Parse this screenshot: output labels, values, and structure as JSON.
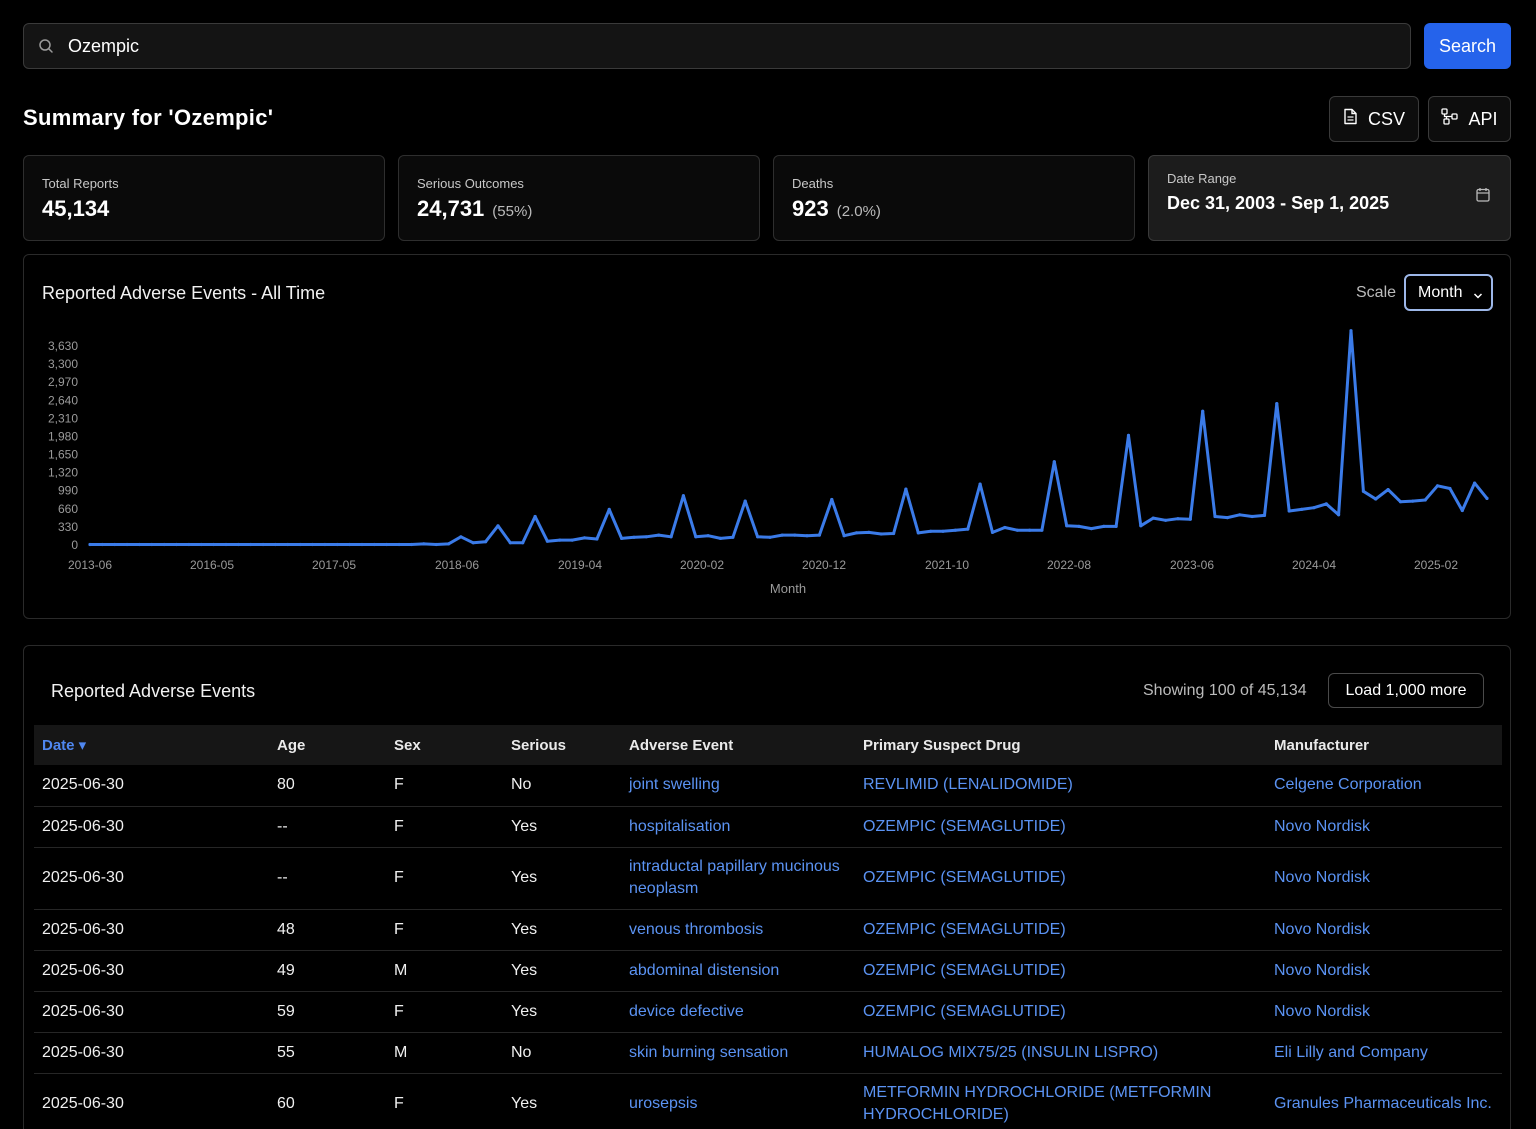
{
  "search": {
    "value": "Ozempic",
    "button_label": "Search"
  },
  "summary": {
    "title": "Summary for 'Ozempic'",
    "csv_label": "CSV",
    "api_label": "API"
  },
  "stats": {
    "total": {
      "label": "Total Reports",
      "value": "45,134"
    },
    "serious": {
      "label": "Serious Outcomes",
      "value": "24,731",
      "pct": "(55%)"
    },
    "deaths": {
      "label": "Deaths",
      "value": "923",
      "pct": "(2.0%)"
    },
    "date_range": {
      "label": "Date Range",
      "value": "Dec 31, 2003 - Sep 1, 2025"
    }
  },
  "chart": {
    "title": "Reported Adverse Events - All Time",
    "scale_label": "Scale",
    "scale_value": "Month"
  },
  "chart_data": {
    "type": "line",
    "title": "Reported Adverse Events - All Time",
    "xlabel": "Month",
    "ylabel": "",
    "ylim": [
      0,
      3630
    ],
    "yticks": [
      "0",
      "330",
      "660",
      "990",
      "1,320",
      "1,650",
      "1,980",
      "2,310",
      "2,640",
      "2,970",
      "3,300",
      "3,630"
    ],
    "xticks": [
      "2013-06",
      "2016-05",
      "2017-05",
      "2018-06",
      "2019-04",
      "2020-02",
      "2020-12",
      "2021-10",
      "2022-08",
      "2023-06",
      "2024-04",
      "2025-02"
    ],
    "grid": false,
    "color": "#3b7be8",
    "values": [
      10,
      10,
      10,
      10,
      10,
      10,
      10,
      10,
      10,
      10,
      10,
      10,
      10,
      10,
      10,
      10,
      10,
      10,
      10,
      10,
      10,
      10,
      10,
      10,
      10,
      10,
      10,
      20,
      10,
      20,
      150,
      40,
      60,
      350,
      40,
      40,
      520,
      70,
      90,
      90,
      130,
      110,
      650,
      120,
      140,
      150,
      180,
      150,
      900,
      150,
      170,
      120,
      140,
      800,
      150,
      140,
      180,
      180,
      170,
      180,
      830,
      170,
      220,
      230,
      200,
      210,
      1020,
      220,
      250,
      250,
      270,
      290,
      1110,
      230,
      320,
      270,
      270,
      270,
      1520,
      350,
      340,
      300,
      340,
      340,
      2000,
      350,
      490,
      450,
      480,
      470,
      2440,
      520,
      500,
      550,
      520,
      540,
      2580,
      620,
      650,
      680,
      750,
      550,
      3910,
      980,
      840,
      1010,
      790,
      800,
      820,
      1080,
      1030,
      630,
      1130,
      850
    ]
  },
  "table": {
    "title": "Reported Adverse Events",
    "showing": "Showing 100 of 45,134",
    "load_more": "Load 1,000 more",
    "columns": [
      "Date ▾",
      "Age",
      "Sex",
      "Serious",
      "Adverse Event",
      "Primary Suspect Drug",
      "Manufacturer"
    ],
    "rows": [
      {
        "date": "2025-06-30",
        "age": "80",
        "sex": "F",
        "serious": "No",
        "event": "joint swelling",
        "drug": "REVLIMID (LENALIDOMIDE)",
        "manufacturer": "Celgene Corporation"
      },
      {
        "date": "2025-06-30",
        "age": "--",
        "sex": "F",
        "serious": "Yes",
        "event": "hospitalisation",
        "drug": "OZEMPIC (SEMAGLUTIDE)",
        "manufacturer": "Novo Nordisk"
      },
      {
        "date": "2025-06-30",
        "age": "--",
        "sex": "F",
        "serious": "Yes",
        "event": "intraductal papillary mucinous neoplasm",
        "drug": "OZEMPIC (SEMAGLUTIDE)",
        "manufacturer": "Novo Nordisk"
      },
      {
        "date": "2025-06-30",
        "age": "48",
        "sex": "F",
        "serious": "Yes",
        "event": "venous thrombosis",
        "drug": "OZEMPIC (SEMAGLUTIDE)",
        "manufacturer": "Novo Nordisk"
      },
      {
        "date": "2025-06-30",
        "age": "49",
        "sex": "M",
        "serious": "Yes",
        "event": "abdominal distension",
        "drug": "OZEMPIC (SEMAGLUTIDE)",
        "manufacturer": "Novo Nordisk"
      },
      {
        "date": "2025-06-30",
        "age": "59",
        "sex": "F",
        "serious": "Yes",
        "event": "device defective",
        "drug": "OZEMPIC (SEMAGLUTIDE)",
        "manufacturer": "Novo Nordisk"
      },
      {
        "date": "2025-06-30",
        "age": "55",
        "sex": "M",
        "serious": "No",
        "event": "skin burning sensation",
        "drug": "HUMALOG MIX75/25 (INSULIN LISPRO)",
        "manufacturer": "Eli Lilly and Company"
      },
      {
        "date": "2025-06-30",
        "age": "60",
        "sex": "F",
        "serious": "Yes",
        "event": "urosepsis",
        "drug": "METFORMIN HYDROCHLORIDE (METFORMIN HYDROCHLORIDE)",
        "manufacturer": "Granules Pharmaceuticals Inc."
      }
    ]
  }
}
